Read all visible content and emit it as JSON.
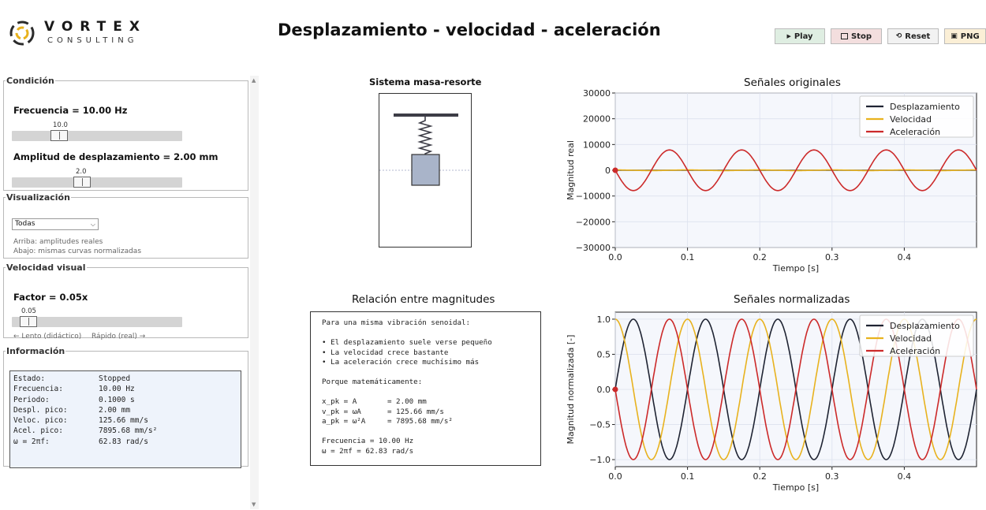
{
  "logo": {
    "line1": "VORTEX",
    "line2": "CONSULTING"
  },
  "title": "Desplazamiento - velocidad - aceleración",
  "toolbar": {
    "play": "Play",
    "stop": "Stop",
    "reset": "Reset",
    "png": "PNG"
  },
  "condicion": {
    "legend": "Condición",
    "freq_label": "Frecuencia = 10.00 Hz",
    "freq_value": "10.0",
    "freq_slider": {
      "value": 10.0,
      "min": 0,
      "max": 40
    },
    "amp_label": "Amplitud de desplazamiento = 2.00 mm",
    "amp_value": "2.0",
    "amp_slider": {
      "value": 2.0,
      "min": 0,
      "max": 5
    }
  },
  "visualizacion": {
    "legend": "Visualización",
    "selected": "Todas",
    "note1": "Arriba: amplitudes reales",
    "note2": "Abajo: mismas curvas normalizadas"
  },
  "velocidad": {
    "legend": "Velocidad visual",
    "factor_label": "Factor = 0.05x",
    "factor_value": "0.05",
    "factor_slider": {
      "value": 0.05,
      "min": 0,
      "max": 1
    },
    "left_hint": "← Lento (didáctico)",
    "right_hint": "Rápido (real) →"
  },
  "informacion": {
    "legend": "Información",
    "rows": [
      {
        "k": "Estado:",
        "v": "Stopped"
      },
      {
        "k": "Frecuencia:",
        "v": "10.00 Hz"
      },
      {
        "k": "Periodo:",
        "v": "0.1000 s"
      },
      {
        "k": "Despl. pico:",
        "v": "2.00 mm"
      },
      {
        "k": "Veloc. pico:",
        "v": "125.66 mm/s"
      },
      {
        "k": "Acel. pico:",
        "v": "7895.68 mm/s²"
      },
      {
        "k": "ω = 2πf:",
        "v": "62.83 rad/s"
      }
    ]
  },
  "spring": {
    "title": "Sistema masa-resorte"
  },
  "relation": {
    "title": "Relación entre magnitudes",
    "lines": [
      "Para una misma vibración senoidal:",
      "",
      "• El desplazamiento suele verse pequeño",
      "• La velocidad crece bastante",
      "• La aceleración crece muchísimo más",
      "",
      "Porque matemáticamente:",
      "",
      "x_pk = A       = 2.00 mm",
      "v_pk = ωA      = 125.66 mm/s",
      "a_pk = ω²A     = 7895.68 mm/s²",
      "",
      "Frecuencia = 10.00 Hz",
      "ω = 2πf = 62.83 rad/s"
    ]
  },
  "colors": {
    "desplazamiento": "#1f2433",
    "velocidad": "#e8b21e",
    "aceleracion": "#cc2a2a"
  },
  "chart_data": [
    {
      "type": "line",
      "title": "Señales originales",
      "xlabel": "Tiempo [s]",
      "ylabel": "Magnitud real",
      "xlim": [
        0,
        0.5
      ],
      "ylim": [
        -30000,
        30000
      ],
      "xticks": [
        "0.0",
        "0.1",
        "0.2",
        "0.3",
        "0.4"
      ],
      "yticks": [
        "−30000",
        "−20000",
        "−10000",
        "0",
        "10000",
        "20000",
        "30000"
      ],
      "grid": true,
      "legend": "top-right",
      "frequency_hz": 10.0,
      "series": [
        {
          "name": "Desplazamiento",
          "amplitude": 2.0,
          "phase": "sin"
        },
        {
          "name": "Velocidad",
          "amplitude": 125.66,
          "phase": "cos"
        },
        {
          "name": "Aceleración",
          "amplitude": 7895.68,
          "phase": "-sin"
        }
      ]
    },
    {
      "type": "line",
      "title": "Señales normalizadas",
      "xlabel": "Tiempo [s]",
      "ylabel": "Magnitud normalizada [-]",
      "xlim": [
        0,
        0.5
      ],
      "ylim": [
        -1.1,
        1.1
      ],
      "xticks": [
        "0.0",
        "0.1",
        "0.2",
        "0.3",
        "0.4"
      ],
      "yticks": [
        "−1.0",
        "−0.5",
        "0.0",
        "0.5",
        "1.0"
      ],
      "grid": true,
      "legend": "top-right",
      "frequency_hz": 10.0,
      "series": [
        {
          "name": "Desplazamiento",
          "amplitude": 1.0,
          "phase": "sin"
        },
        {
          "name": "Velocidad",
          "amplitude": 1.0,
          "phase": "cos"
        },
        {
          "name": "Aceleración",
          "amplitude": 1.0,
          "phase": "-sin"
        }
      ]
    }
  ]
}
